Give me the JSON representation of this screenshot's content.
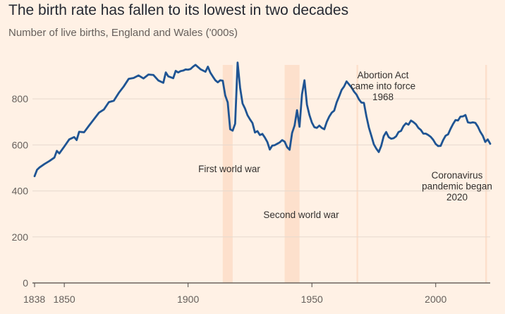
{
  "header": {
    "title": "The birth rate has fallen to its lowest in two decades",
    "subtitle": "Number of live births, England and Wales ('000s)"
  },
  "colors": {
    "background": "#fff1e5",
    "line": "#1f5493",
    "shade": "#fde0cc",
    "grid": "#e6d9ce"
  },
  "chart_data": {
    "type": "line",
    "title": "The birth rate has fallen to its lowest in two decades",
    "subtitle": "Number of live births, England and Wales ('000s)",
    "xlabel": "",
    "ylabel": "",
    "xlim": [
      1838,
      2022
    ],
    "ylim": [
      0,
      960
    ],
    "grid": true,
    "y_ticks": [
      0,
      200,
      400,
      600,
      800
    ],
    "x_ticks": [
      1838,
      1850,
      1900,
      1950,
      2000
    ],
    "x_tick_labels": [
      "1838",
      "1850",
      "1900",
      "1950",
      "2000"
    ],
    "shaded_periods": [
      {
        "name": "First world war",
        "start": 1914,
        "end": 1918,
        "label": "First world war"
      },
      {
        "name": "Second world war",
        "start": 1939,
        "end": 1945,
        "label": "Second world war"
      },
      {
        "name": "Abortion Act",
        "start": 1968,
        "end": 1968.5,
        "label": [
          "Abortion Act",
          "came into force",
          "1968"
        ]
      },
      {
        "name": "Coronavirus pandemic",
        "start": 2020,
        "end": 2020.6,
        "label": [
          "Coronavirus",
          "pandemic began",
          "2020"
        ]
      }
    ],
    "series": [
      {
        "name": "Live births ('000s)",
        "x": [
          1838,
          1839,
          1840,
          1842,
          1844,
          1846,
          1847,
          1848,
          1850,
          1852,
          1854,
          1855,
          1856,
          1858,
          1860,
          1862,
          1864,
          1866,
          1868,
          1870,
          1872,
          1874,
          1876,
          1878,
          1880,
          1882,
          1884,
          1886,
          1888,
          1890,
          1891,
          1892,
          1894,
          1895,
          1896,
          1897,
          1898,
          1899,
          1900,
          1901,
          1902,
          1903,
          1905,
          1907,
          1908,
          1909,
          1910,
          1911,
          1912,
          1913,
          1914,
          1915,
          1916,
          1917,
          1918,
          1919,
          1920,
          1921,
          1922,
          1923,
          1924,
          1925,
          1926,
          1927,
          1928,
          1929,
          1930,
          1931,
          1932,
          1933,
          1934,
          1935,
          1936,
          1937,
          1938,
          1939,
          1940,
          1941,
          1942,
          1943,
          1944,
          1945,
          1946,
          1947,
          1948,
          1949,
          1950,
          1951,
          1952,
          1953,
          1954,
          1955,
          1956,
          1957,
          1958,
          1959,
          1960,
          1961,
          1962,
          1963,
          1964,
          1965,
          1966,
          1967,
          1968,
          1969,
          1970,
          1971,
          1972,
          1973,
          1974,
          1975,
          1976,
          1977,
          1978,
          1979,
          1980,
          1981,
          1982,
          1983,
          1984,
          1985,
          1986,
          1987,
          1988,
          1989,
          1990,
          1991,
          1992,
          1993,
          1994,
          1995,
          1996,
          1997,
          1998,
          1999,
          2000,
          2001,
          2002,
          2003,
          2004,
          2005,
          2006,
          2007,
          2008,
          2009,
          2010,
          2011,
          2012,
          2013,
          2014,
          2015,
          2016,
          2017,
          2018,
          2019,
          2020,
          2021,
          2022
        ],
        "values": [
          464,
          492,
          502,
          517,
          530,
          545,
          574,
          563,
          593,
          624,
          634,
          621,
          657,
          655,
          684,
          712,
          740,
          754,
          786,
          792,
          826,
          854,
          887,
          891,
          902,
          889,
          906,
          904,
          880,
          870,
          915,
          898,
          890,
          922,
          915,
          921,
          923,
          928,
          927,
          930,
          940,
          948,
          929,
          918,
          940,
          914,
          897,
          881,
          872,
          881,
          879,
          815,
          785,
          668,
          662,
          692,
          958,
          849,
          780,
          758,
          729,
          711,
          695,
          654,
          660,
          643,
          648,
          632,
          613,
          580,
          597,
          599,
          605,
          611,
          621,
          614,
          590,
          579,
          652,
          684,
          751,
          679,
          820,
          881,
          775,
          730,
          697,
          677,
          674,
          684,
          674,
          668,
          700,
          723,
          740,
          749,
          785,
          811,
          839,
          854,
          876,
          863,
          850,
          832,
          819,
          798,
          784,
          783,
          725,
          676,
          640,
          603,
          584,
          569,
          596,
          638,
          656,
          634,
          627,
          629,
          637,
          656,
          661,
          682,
          694,
          688,
          706,
          699,
          690,
          674,
          665,
          649,
          649,
          643,
          635,
          622,
          604,
          595,
          596,
          621,
          640,
          646,
          670,
          691,
          708,
          706,
          723,
          724,
          730,
          698,
          696,
          698,
          696,
          680,
          657,
          640,
          613,
          624,
          605
        ]
      }
    ]
  }
}
